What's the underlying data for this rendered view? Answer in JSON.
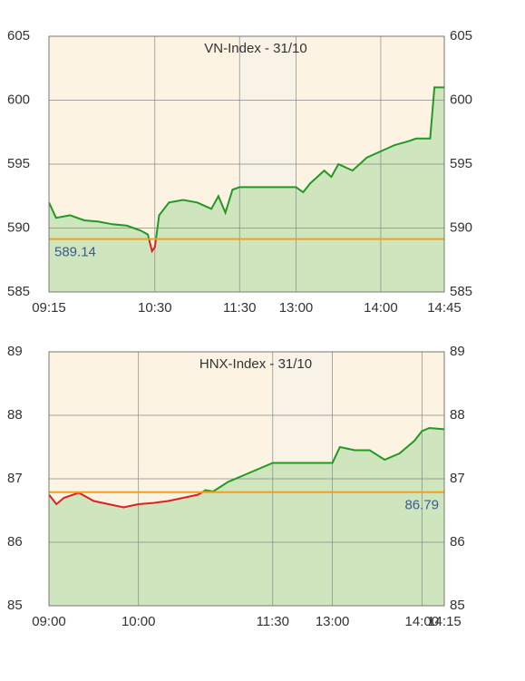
{
  "chart_data": [
    {
      "type": "line",
      "title": "VN-Index - 31/10",
      "x": [
        "09:15",
        "09:20",
        "09:30",
        "09:40",
        "09:50",
        "10:00",
        "10:10",
        "10:15",
        "10:20",
        "10:25",
        "10:28",
        "10:30",
        "10:33",
        "10:40",
        "10:50",
        "11:00",
        "11:10",
        "11:15",
        "11:20",
        "11:25",
        "11:30",
        "13:00",
        "13:05",
        "13:10",
        "13:15",
        "13:20",
        "13:25",
        "13:30",
        "13:40",
        "13:50",
        "14:00",
        "14:10",
        "14:20",
        "14:25",
        "14:35",
        "14:38",
        "14:45"
      ],
      "values": [
        592,
        590.8,
        591,
        590.6,
        590.5,
        590.3,
        590.2,
        590,
        589.8,
        589.5,
        588.2,
        588.5,
        591,
        592,
        592.2,
        592,
        591.5,
        592.5,
        591.2,
        593,
        593.2,
        593.2,
        592.8,
        593.5,
        594,
        594.5,
        594,
        595,
        594.5,
        595.5,
        596,
        596.5,
        596.8,
        597,
        597,
        601,
        601
      ],
      "reference": 589.14,
      "reference_label_corner": "left",
      "color": "#229922",
      "down_color": "#e02020",
      "reference_color": "#f0a020",
      "area_color": "#cfe5bd",
      "ylim": [
        585,
        605
      ],
      "yticks": [
        585,
        590,
        595,
        600,
        605
      ],
      "xticks": [
        "09:15",
        "10:30",
        "11:30",
        "13:00",
        "14:00",
        "14:45"
      ],
      "grid": true
    },
    {
      "type": "line",
      "title": "HNX-Index - 31/10",
      "x": [
        "09:00",
        "09:05",
        "09:10",
        "09:20",
        "09:30",
        "09:40",
        "09:50",
        "10:00",
        "10:10",
        "10:20",
        "10:30",
        "10:40",
        "10:45",
        "10:50",
        "11:00",
        "11:10",
        "11:20",
        "11:30",
        "13:00",
        "13:05",
        "13:15",
        "13:25",
        "13:35",
        "13:45",
        "13:55",
        "14:00",
        "14:05",
        "14:15"
      ],
      "values": [
        86.75,
        86.6,
        86.7,
        86.78,
        86.65,
        86.6,
        86.55,
        86.6,
        86.62,
        86.65,
        86.7,
        86.75,
        86.82,
        86.8,
        86.95,
        87.05,
        87.15,
        87.25,
        87.25,
        87.5,
        87.45,
        87.45,
        87.3,
        87.4,
        87.6,
        87.75,
        87.8,
        87.78
      ],
      "reference": 86.79,
      "reference_label_corner": "right",
      "color": "#229922",
      "down_color": "#e02020",
      "reference_color": "#f0a020",
      "area_color": "#cfe5bd",
      "ylim": [
        85,
        89
      ],
      "yticks": [
        85,
        86,
        87,
        88,
        89
      ],
      "xticks": [
        "09:00",
        "10:00",
        "11:30",
        "13:00",
        "14:00",
        "14:15"
      ],
      "grid": true
    }
  ]
}
